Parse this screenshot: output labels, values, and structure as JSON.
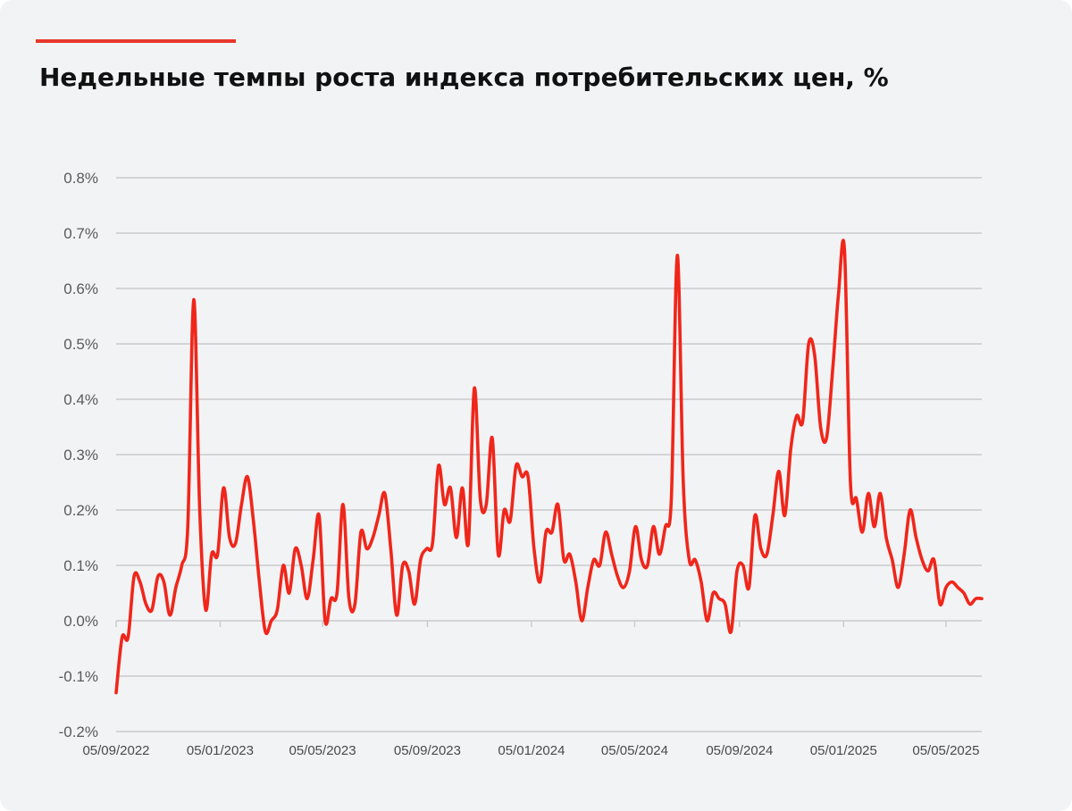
{
  "header": {
    "title": "Недельные темпы роста индекса потребительских цен, %"
  },
  "colors": {
    "accent": "#e8372b",
    "line": "#f0261a",
    "grid": "#c9cacd",
    "background": "#f2f3f5"
  },
  "chart_data": {
    "type": "line",
    "title": "Недельные темпы роста индекса потребительских цен, %",
    "xlabel": "",
    "ylabel": "",
    "grid": true,
    "ylim": [
      -0.2,
      0.8
    ],
    "xlim": [
      "2022-09-05",
      "2025-06-16"
    ],
    "y_ticks": [
      -0.2,
      -0.1,
      0.0,
      0.1,
      0.2,
      0.3,
      0.4,
      0.5,
      0.6,
      0.7,
      0.8
    ],
    "y_tick_labels": [
      "-0.2%",
      "-0.1%",
      "0.0%",
      "0.1%",
      "0.2%",
      "0.3%",
      "0.4%",
      "0.5%",
      "0.6%",
      "0.7%",
      "0.8%"
    ],
    "x_ticks": [
      "2022-09-05",
      "2023-01-05",
      "2023-05-05",
      "2023-09-05",
      "2024-01-05",
      "2024-05-05",
      "2024-09-05",
      "2025-01-05",
      "2025-05-05"
    ],
    "x_tick_labels": [
      "05/09/2022",
      "05/01/2023",
      "05/05/2023",
      "05/09/2023",
      "05/01/2024",
      "05/05/2024",
      "05/09/2024",
      "05/01/2025",
      "05/05/2025"
    ],
    "series": [
      {
        "name": "",
        "color": "#f0261a",
        "points": [
          [
            "2022-09-05",
            -0.13
          ],
          [
            "2022-09-12",
            -0.03
          ],
          [
            "2022-09-19",
            -0.03
          ],
          [
            "2022-09-26",
            0.08
          ],
          [
            "2022-10-03",
            0.07
          ],
          [
            "2022-10-10",
            0.03
          ],
          [
            "2022-10-17",
            0.02
          ],
          [
            "2022-10-24",
            0.08
          ],
          [
            "2022-10-31",
            0.07
          ],
          [
            "2022-11-07",
            0.01
          ],
          [
            "2022-11-14",
            0.06
          ],
          [
            "2022-11-21",
            0.1
          ],
          [
            "2022-11-28",
            0.17
          ],
          [
            "2022-12-05",
            0.58
          ],
          [
            "2022-12-12",
            0.2
          ],
          [
            "2022-12-19",
            0.02
          ],
          [
            "2022-12-26",
            0.12
          ],
          [
            "2023-01-02",
            0.12
          ],
          [
            "2023-01-09",
            0.24
          ],
          [
            "2023-01-16",
            0.15
          ],
          [
            "2023-01-23",
            0.14
          ],
          [
            "2023-01-30",
            0.21
          ],
          [
            "2023-02-06",
            0.26
          ],
          [
            "2023-02-13",
            0.18
          ],
          [
            "2023-02-20",
            0.07
          ],
          [
            "2023-02-27",
            -0.02
          ],
          [
            "2023-03-06",
            0.0
          ],
          [
            "2023-03-13",
            0.02
          ],
          [
            "2023-03-20",
            0.1
          ],
          [
            "2023-03-27",
            0.05
          ],
          [
            "2023-04-03",
            0.13
          ],
          [
            "2023-04-10",
            0.1
          ],
          [
            "2023-04-17",
            0.04
          ],
          [
            "2023-04-24",
            0.11
          ],
          [
            "2023-05-01",
            0.19
          ],
          [
            "2023-05-08",
            0.0
          ],
          [
            "2023-05-15",
            0.04
          ],
          [
            "2023-05-22",
            0.05
          ],
          [
            "2023-05-29",
            0.21
          ],
          [
            "2023-06-05",
            0.04
          ],
          [
            "2023-06-12",
            0.03
          ],
          [
            "2023-06-19",
            0.16
          ],
          [
            "2023-06-26",
            0.13
          ],
          [
            "2023-07-03",
            0.15
          ],
          [
            "2023-07-10",
            0.19
          ],
          [
            "2023-07-17",
            0.23
          ],
          [
            "2023-07-24",
            0.13
          ],
          [
            "2023-07-31",
            0.01
          ],
          [
            "2023-08-07",
            0.1
          ],
          [
            "2023-08-14",
            0.09
          ],
          [
            "2023-08-21",
            0.03
          ],
          [
            "2023-08-28",
            0.11
          ],
          [
            "2023-09-04",
            0.13
          ],
          [
            "2023-09-11",
            0.14
          ],
          [
            "2023-09-18",
            0.28
          ],
          [
            "2023-09-25",
            0.21
          ],
          [
            "2023-10-02",
            0.24
          ],
          [
            "2023-10-09",
            0.15
          ],
          [
            "2023-10-16",
            0.24
          ],
          [
            "2023-10-23",
            0.14
          ],
          [
            "2023-10-30",
            0.42
          ],
          [
            "2023-11-06",
            0.22
          ],
          [
            "2023-11-13",
            0.21
          ],
          [
            "2023-11-20",
            0.33
          ],
          [
            "2023-11-27",
            0.12
          ],
          [
            "2023-12-04",
            0.2
          ],
          [
            "2023-12-11",
            0.18
          ],
          [
            "2023-12-18",
            0.28
          ],
          [
            "2023-12-25",
            0.26
          ],
          [
            "2024-01-01",
            0.26
          ],
          [
            "2024-01-08",
            0.13
          ],
          [
            "2024-01-15",
            0.07
          ],
          [
            "2024-01-22",
            0.16
          ],
          [
            "2024-01-29",
            0.16
          ],
          [
            "2024-02-05",
            0.21
          ],
          [
            "2024-02-12",
            0.11
          ],
          [
            "2024-02-19",
            0.12
          ],
          [
            "2024-02-26",
            0.07
          ],
          [
            "2024-03-04",
            0.0
          ],
          [
            "2024-03-11",
            0.06
          ],
          [
            "2024-03-18",
            0.11
          ],
          [
            "2024-03-25",
            0.1
          ],
          [
            "2024-04-01",
            0.16
          ],
          [
            "2024-04-08",
            0.12
          ],
          [
            "2024-04-15",
            0.08
          ],
          [
            "2024-04-22",
            0.06
          ],
          [
            "2024-04-29",
            0.09
          ],
          [
            "2024-05-06",
            0.17
          ],
          [
            "2024-05-13",
            0.11
          ],
          [
            "2024-05-20",
            0.1
          ],
          [
            "2024-05-27",
            0.17
          ],
          [
            "2024-06-03",
            0.12
          ],
          [
            "2024-06-10",
            0.17
          ],
          [
            "2024-06-17",
            0.22
          ],
          [
            "2024-06-24",
            0.66
          ],
          [
            "2024-07-01",
            0.25
          ],
          [
            "2024-07-08",
            0.11
          ],
          [
            "2024-07-15",
            0.11
          ],
          [
            "2024-07-22",
            0.07
          ],
          [
            "2024-07-29",
            0.0
          ],
          [
            "2024-08-05",
            0.05
          ],
          [
            "2024-08-12",
            0.04
          ],
          [
            "2024-08-19",
            0.03
          ],
          [
            "2024-08-26",
            -0.02
          ],
          [
            "2024-09-02",
            0.09
          ],
          [
            "2024-09-09",
            0.1
          ],
          [
            "2024-09-16",
            0.06
          ],
          [
            "2024-09-23",
            0.19
          ],
          [
            "2024-09-30",
            0.13
          ],
          [
            "2024-10-07",
            0.12
          ],
          [
            "2024-10-14",
            0.19
          ],
          [
            "2024-10-21",
            0.27
          ],
          [
            "2024-10-28",
            0.19
          ],
          [
            "2024-11-04",
            0.31
          ],
          [
            "2024-11-11",
            0.37
          ],
          [
            "2024-11-18",
            0.36
          ],
          [
            "2024-11-25",
            0.5
          ],
          [
            "2024-12-02",
            0.48
          ],
          [
            "2024-12-09",
            0.35
          ],
          [
            "2024-12-16",
            0.33
          ],
          [
            "2024-12-23",
            0.45
          ],
          [
            "2024-12-30",
            0.59
          ],
          [
            "2025-01-06",
            0.67
          ],
          [
            "2025-01-13",
            0.25
          ],
          [
            "2025-01-20",
            0.22
          ],
          [
            "2025-01-27",
            0.16
          ],
          [
            "2025-02-03",
            0.23
          ],
          [
            "2025-02-10",
            0.17
          ],
          [
            "2025-02-17",
            0.23
          ],
          [
            "2025-02-24",
            0.15
          ],
          [
            "2025-03-03",
            0.11
          ],
          [
            "2025-03-10",
            0.06
          ],
          [
            "2025-03-17",
            0.12
          ],
          [
            "2025-03-24",
            0.2
          ],
          [
            "2025-03-31",
            0.15
          ],
          [
            "2025-04-07",
            0.11
          ],
          [
            "2025-04-14",
            0.09
          ],
          [
            "2025-04-21",
            0.11
          ],
          [
            "2025-04-28",
            0.03
          ],
          [
            "2025-05-05",
            0.06
          ],
          [
            "2025-05-12",
            0.07
          ],
          [
            "2025-05-19",
            0.06
          ],
          [
            "2025-05-26",
            0.05
          ],
          [
            "2025-06-02",
            0.03
          ],
          [
            "2025-06-09",
            0.04
          ],
          [
            "2025-06-16",
            0.04
          ]
        ]
      }
    ]
  }
}
